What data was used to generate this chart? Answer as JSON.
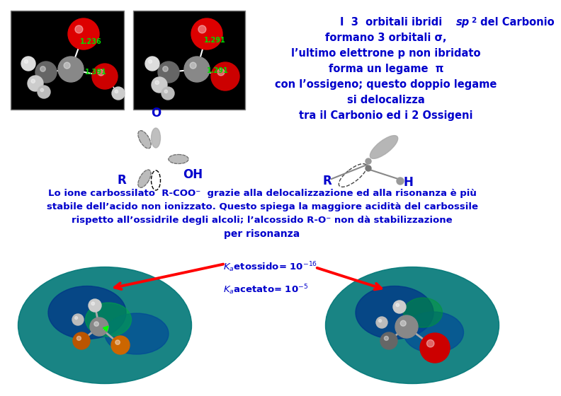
{
  "title_text_lines": [
    "I  3  orbitali ibridi sp² del Carbonio",
    "formano 3 orbitali σ,",
    "l’ultimo elettrone p non ibridato",
    "forma un legame  π",
    "con l’ossigeno; questo doppio legame",
    "si delocalizza",
    "tra il Carbonio ed i 2 Ossigeni"
  ],
  "bottom_text_line1": "Lo ione carbossilato  R-COO⁻  grazie alla delocalizzazione ed alla risonanza è più",
  "bottom_text_line2": "stabile dell’acido non ionizzato. Questo spiega la maggiore acidità del carbossile",
  "bottom_text_line3": "rispetto all’ossidrile degli alcoli; l’alcossido R-O⁻ non dà stabilizzazione",
  "bottom_text_line4": "per risonanza",
  "text_color_blue": "#0000CC",
  "text_color_green": "#00AA00",
  "background_white": "#FFFFFF",
  "mol1_bond1": "1.236",
  "mol1_bond2": "1.391",
  "mol2_bond1": "1.291",
  "mol2_bond2": "1.291"
}
